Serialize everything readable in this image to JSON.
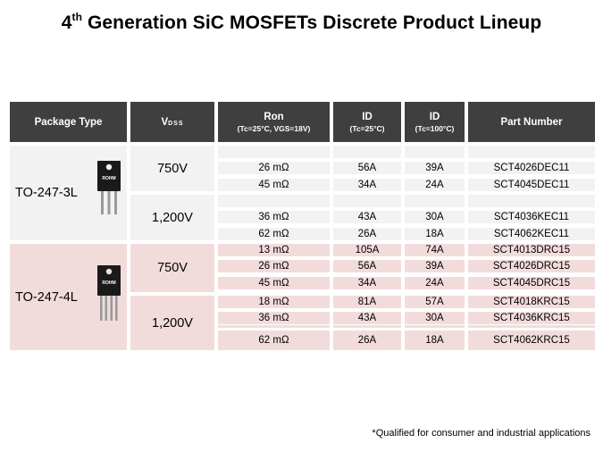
{
  "title": {
    "prefix": "4",
    "sup": "th",
    "rest": " Generation SiC MOSFETs Discrete Product Lineup"
  },
  "header": {
    "package_type": "Package Type",
    "vdss_main": "V",
    "vdss_sub": "DSS",
    "ron_main": "Ron",
    "ron_sub": "(Tc=25°C, VGS=18V)",
    "id25_main": "ID",
    "id25_sub": "(Tc=25°C)",
    "id100_main": "ID",
    "id100_sub": "(Tc=100°C)",
    "part_number": "Part Number"
  },
  "packages": {
    "to247_3l": "TO-247-3L",
    "to247_4l": "TO-247-4L",
    "logo_text": "ROHM"
  },
  "voltages": {
    "v3l_750": "750V",
    "v3l_1200": "1,200V",
    "v4l_750": "750V",
    "v4l_1200": "1,200V"
  },
  "rows": [
    {
      "ron": "26 mΩ",
      "id25": "56A",
      "id100": "39A",
      "part": "SCT4026DEC11"
    },
    {
      "ron": "45 mΩ",
      "id25": "34A",
      "id100": "24A",
      "part": "SCT4045DEC11"
    },
    {
      "ron": "36 mΩ",
      "id25": "43A",
      "id100": "30A",
      "part": "SCT4036KEC11"
    },
    {
      "ron": "62 mΩ",
      "id25": "26A",
      "id100": "18A",
      "part": "SCT4062KEC11"
    },
    {
      "ron": "13 mΩ",
      "id25": "105A",
      "id100": "74A",
      "part": "SCT4013DRC15"
    },
    {
      "ron": "26 mΩ",
      "id25": "56A",
      "id100": "39A",
      "part": "SCT4026DRC15"
    },
    {
      "ron": "45 mΩ",
      "id25": "34A",
      "id100": "24A",
      "part": "SCT4045DRC15"
    },
    {
      "ron": "18 mΩ",
      "id25": "81A",
      "id100": "57A",
      "part": "SCT4018KRC15"
    },
    {
      "ron": "36 mΩ",
      "id25": "43A",
      "id100": "30A",
      "part": "SCT4036KRC15"
    },
    {
      "ron": "62 mΩ",
      "id25": "26A",
      "id100": "18A",
      "part": "SCT4062KRC15"
    }
  ],
  "footnote": "*Qualified for consumer and industrial applications"
}
